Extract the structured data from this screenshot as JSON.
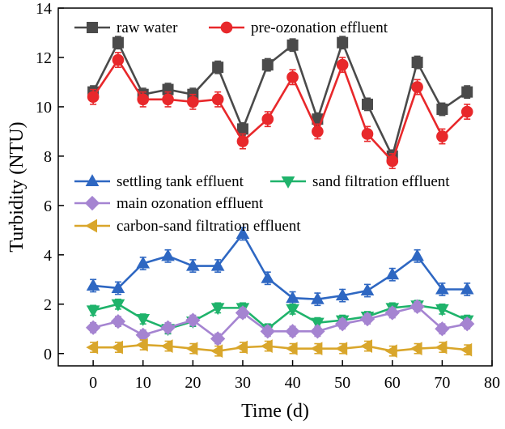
{
  "chart_data": {
    "type": "line",
    "xlabel": "Time (d)",
    "ylabel": "Turbidity (NTU)",
    "xlim": [
      -7,
      80
    ],
    "ylim": [
      -0.5,
      14
    ],
    "x_ticks": [
      0,
      10,
      20,
      30,
      40,
      50,
      60,
      70,
      80
    ],
    "y_ticks": [
      0,
      2,
      4,
      6,
      8,
      10,
      12,
      14
    ],
    "grid": false,
    "error_bars": true,
    "x": [
      0,
      5,
      10,
      15,
      20,
      25,
      30,
      35,
      40,
      45,
      50,
      55,
      60,
      65,
      70,
      75
    ],
    "series": [
      {
        "name": "raw water",
        "color": "#4a4a4a",
        "marker": "square",
        "values": [
          10.6,
          12.6,
          10.5,
          10.7,
          10.5,
          11.6,
          9.1,
          11.7,
          12.5,
          9.5,
          12.6,
          10.1,
          8.0,
          11.8,
          9.9,
          10.6
        ],
        "errors": [
          0.25,
          0.25,
          0.25,
          0.25,
          0.25,
          0.25,
          0.25,
          0.25,
          0.25,
          0.25,
          0.25,
          0.25,
          0.25,
          0.25,
          0.25,
          0.25
        ]
      },
      {
        "name": "pre-ozonation effluent",
        "color": "#e8282b",
        "marker": "circle",
        "values": [
          10.4,
          11.9,
          10.3,
          10.3,
          10.2,
          10.3,
          8.6,
          9.5,
          11.2,
          9.0,
          11.7,
          8.9,
          7.8,
          10.8,
          8.8,
          9.8
        ],
        "errors": [
          0.3,
          0.3,
          0.3,
          0.3,
          0.3,
          0.3,
          0.3,
          0.3,
          0.3,
          0.3,
          0.3,
          0.3,
          0.3,
          0.3,
          0.3,
          0.3
        ]
      },
      {
        "name": "settling tank effluent",
        "color": "#2e67c2",
        "marker": "triangle-up",
        "values": [
          2.75,
          2.65,
          3.65,
          3.95,
          3.55,
          3.55,
          4.85,
          3.05,
          2.25,
          2.2,
          2.35,
          2.55,
          3.2,
          3.95,
          2.6,
          2.6
        ],
        "errors": [
          0.25,
          0.25,
          0.25,
          0.25,
          0.25,
          0.25,
          0.25,
          0.25,
          0.25,
          0.25,
          0.25,
          0.25,
          0.25,
          0.25,
          0.25,
          0.25
        ]
      },
      {
        "name": "sand filtration effluent",
        "color": "#1fb36b",
        "marker": "triangle-down",
        "values": [
          1.75,
          2.0,
          1.4,
          1.0,
          1.3,
          1.85,
          1.85,
          1.0,
          1.8,
          1.25,
          1.35,
          1.5,
          1.85,
          1.95,
          1.8,
          1.35
        ],
        "errors": [
          0.2,
          0.2,
          0.2,
          0.2,
          0.2,
          0.2,
          0.2,
          0.2,
          0.2,
          0.2,
          0.2,
          0.2,
          0.2,
          0.2,
          0.2,
          0.2
        ]
      },
      {
        "name": "main ozonation effluent",
        "color": "#a584d1",
        "marker": "diamond",
        "values": [
          1.05,
          1.3,
          0.75,
          1.05,
          1.35,
          0.6,
          1.65,
          0.9,
          0.9,
          0.9,
          1.2,
          1.4,
          1.65,
          1.9,
          1.0,
          1.2
        ],
        "errors": [
          0.2,
          0.2,
          0.2,
          0.2,
          0.2,
          0.2,
          0.2,
          0.2,
          0.2,
          0.2,
          0.2,
          0.2,
          0.2,
          0.2,
          0.2,
          0.2
        ]
      },
      {
        "name": "carbon-sand filtration effluent",
        "color": "#d9a62b",
        "marker": "triangle-left",
        "values": [
          0.25,
          0.25,
          0.35,
          0.3,
          0.2,
          0.1,
          0.25,
          0.3,
          0.2,
          0.2,
          0.2,
          0.3,
          0.1,
          0.2,
          0.25,
          0.15
        ],
        "errors": [
          0.2,
          0.2,
          0.2,
          0.2,
          0.2,
          0.2,
          0.2,
          0.2,
          0.2,
          0.2,
          0.2,
          0.2,
          0.2,
          0.2,
          0.2,
          0.2
        ]
      }
    ],
    "legends": [
      {
        "placement": "top-left",
        "entries": [
          "raw water",
          "pre-ozonation effluent"
        ]
      },
      {
        "placement": "middle-left",
        "entries": [
          "settling tank effluent",
          "sand filtration effluent",
          "main ozonation effluent",
          "carbon-sand filtration effluent"
        ]
      }
    ]
  }
}
